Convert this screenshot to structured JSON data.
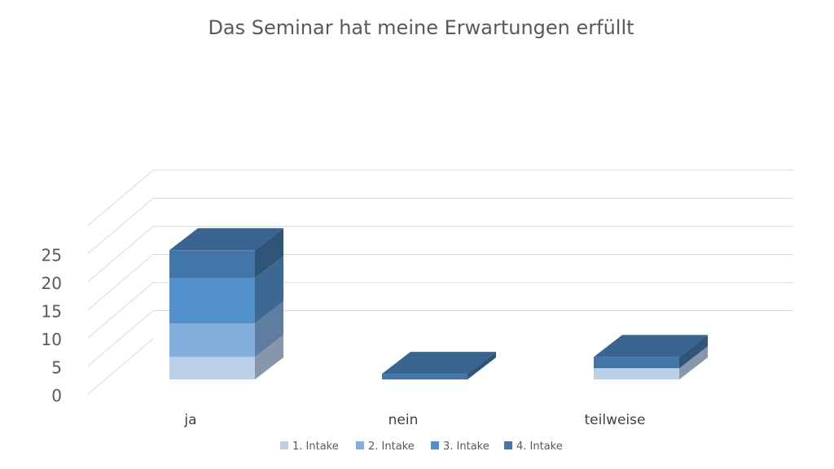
{
  "chart_data": {
    "type": "bar",
    "stacked": true,
    "three_d": true,
    "title": "Das Seminar hat meine Erwartungen erfüllt",
    "categories": [
      "ja",
      "nein",
      "teilweise"
    ],
    "series": [
      {
        "name": "1. Intake",
        "values": [
          4,
          0,
          2
        ],
        "color": "#bcd0ea"
      },
      {
        "name": "2. Intake",
        "values": [
          6,
          0,
          0
        ],
        "color": "#84aedd"
      },
      {
        "name": "3. Intake",
        "values": [
          8,
          0,
          0
        ],
        "color": "#5391cc"
      },
      {
        "name": "4. Intake",
        "values": [
          5,
          1,
          2
        ],
        "color": "#4276a8"
      }
    ],
    "yticks": [
      "0",
      "5",
      "10",
      "15",
      "20",
      "25"
    ],
    "ylim": [
      0,
      30
    ],
    "grid": true,
    "legend": "bottom"
  }
}
